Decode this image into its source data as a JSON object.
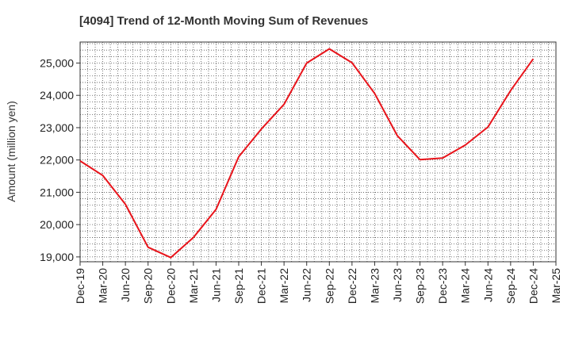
{
  "chart_data": {
    "type": "line",
    "title": "[4094]  Trend of 12-Month Moving Sum of Revenues",
    "xlabel": "",
    "ylabel": "Amount (million yen)",
    "x_ticks": [
      "Dec-19",
      "Mar-20",
      "Jun-20",
      "Sep-20",
      "Dec-20",
      "Mar-21",
      "Jun-21",
      "Sep-21",
      "Dec-21",
      "Mar-22",
      "Jun-22",
      "Sep-22",
      "Dec-22",
      "Mar-23",
      "Jun-23",
      "Sep-23",
      "Dec-23",
      "Mar-24",
      "Jun-24",
      "Sep-24",
      "Dec-24",
      "Mar-25"
    ],
    "y_ticks": [
      "19,000",
      "20,000",
      "21,000",
      "22,000",
      "23,000",
      "24,000",
      "25,000"
    ],
    "y_tick_values": [
      19000,
      20000,
      21000,
      22000,
      23000,
      24000,
      25000
    ],
    "ylim": [
      18850,
      25650
    ],
    "grid": true,
    "series": [
      {
        "color": "#e8141b",
        "x": [
          "Dec-19",
          "Mar-20",
          "Jun-20",
          "Sep-20",
          "Dec-20",
          "Mar-21",
          "Jun-21",
          "Sep-21",
          "Dec-21",
          "Mar-22",
          "Jun-22",
          "Sep-22",
          "Dec-22",
          "Mar-23",
          "Jun-23",
          "Sep-23",
          "Dec-23",
          "Mar-24",
          "Jun-24",
          "Sep-24",
          "Dec-24"
        ],
        "values": [
          21970,
          21520,
          20630,
          19300,
          18980,
          19600,
          20470,
          22100,
          22960,
          23720,
          25000,
          25440,
          25010,
          24060,
          22750,
          22010,
          22060,
          22460,
          23020,
          24150,
          25130
        ]
      }
    ]
  }
}
